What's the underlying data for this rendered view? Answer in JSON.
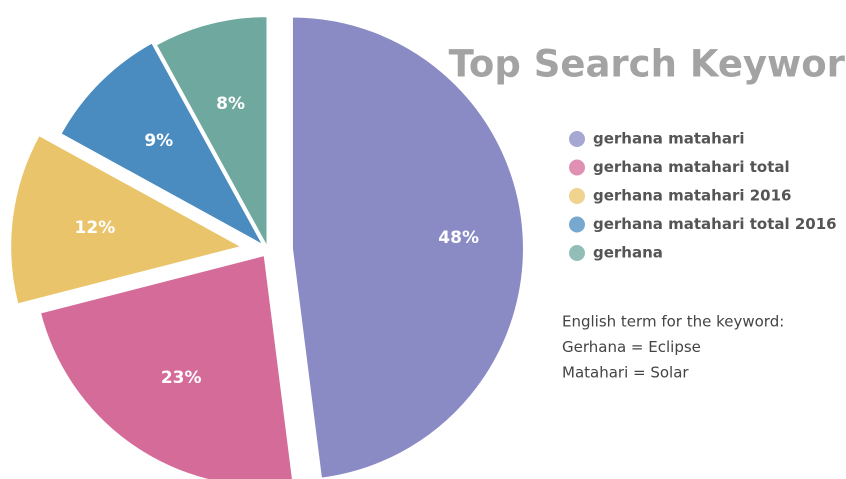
{
  "chart_data": {
    "type": "pie",
    "title": "Top Search Keyword",
    "categories": [
      "gerhana matahari",
      "gerhana matahari total",
      "gerhana matahari 2016",
      "gerhana matahari total 2016",
      "gerhana"
    ],
    "values": [
      48,
      23,
      12,
      9,
      8
    ],
    "value_labels": [
      "48%",
      "23%",
      "12%",
      "9%",
      "8%"
    ],
    "colors": [
      "#8a8ac4",
      "#d46b99",
      "#e9c46a",
      "#4a8bc0",
      "#6fa89f"
    ],
    "annotations": [
      "English term for the keyword:",
      "Gerhana = Eclipse",
      "Matahari = Solar"
    ]
  }
}
